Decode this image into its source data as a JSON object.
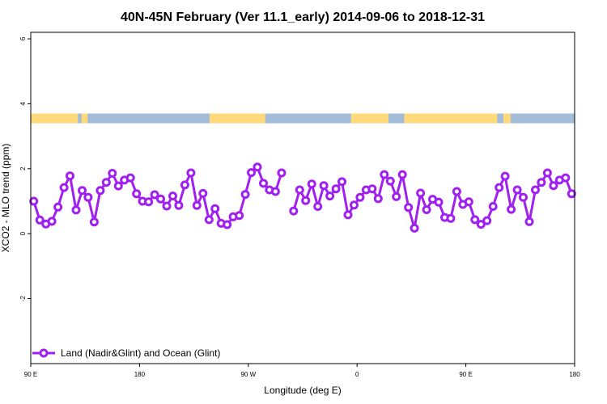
{
  "chart_data": {
    "type": "line",
    "title": "40N-45N February (Ver 11.1_early)   2014-09-06 to 2018-12-31",
    "xlabel": "Longitude (deg E)",
    "ylabel": "XCO2 - MLO trend (ppm)",
    "xlim": [
      90,
      450
    ],
    "ylim": [
      -4,
      6.2
    ],
    "x_ticks": [
      {
        "value": 90,
        "label": "90 E"
      },
      {
        "value": 180,
        "label": "180"
      },
      {
        "value": 270,
        "label": "90 W"
      },
      {
        "value": 360,
        "label": "0"
      },
      {
        "value": 450,
        "label": "90 E"
      }
    ],
    "x_ticks_extra": [
      {
        "value": 540,
        "label": "180"
      }
    ],
    "y_ticks": [
      {
        "value": 6,
        "label": "6"
      },
      {
        "value": 4,
        "label": "4"
      },
      {
        "value": 2,
        "label": "2"
      },
      {
        "value": 0,
        "label": "0"
      },
      {
        "value": -2,
        "label": "-2"
      }
    ],
    "legend": {
      "position": "bottom-left",
      "entries": [
        "Land (Nadir&Glint) and Ocean (Glint)"
      ]
    },
    "colors": {
      "series": "#a020f0",
      "land": "#ffd97a",
      "ocean": "#a3bcd8"
    },
    "land_ocean_strip": {
      "y_range": [
        3.4,
        3.7
      ],
      "land_ranges": [
        [
          90,
          129
        ],
        [
          132,
          137
        ],
        [
          238,
          284
        ],
        [
          355,
          386
        ],
        [
          399,
          476
        ],
        [
          481,
          487
        ]
      ]
    },
    "series": [
      {
        "name": "Land (Nadir&Glint) and Ocean (Glint)",
        "segments": [
          {
            "x": [
              92.5,
              97.5,
              102.5,
              107.5,
              112.5,
              117.5,
              122.5,
              127.5,
              132.5,
              137.5,
              142.5,
              147.5,
              152.5,
              157.5,
              162.5,
              167.5,
              172.5,
              177.5,
              182.5,
              187.5,
              192.5,
              197.5,
              202.5,
              207.5,
              212.5,
              217.5,
              222.5,
              227.5,
              232.5,
              237.5,
              242.5,
              247.5,
              252.5,
              257.5,
              262.5,
              267.5,
              272.5,
              277.5,
              282.5,
              287.5,
              292.5,
              297.5,
              302.5
            ],
            "y": [
              1.0,
              0.42,
              0.3,
              0.38,
              0.82,
              1.42,
              1.78,
              0.73,
              1.33,
              1.12,
              0.36,
              1.33,
              1.58,
              1.86,
              1.47,
              1.65,
              1.72,
              1.23,
              1.0,
              0.98,
              1.2,
              1.07,
              0.85,
              1.16,
              0.87,
              1.5,
              1.87,
              0.87,
              1.24,
              0.43,
              0.77,
              0.32,
              0.28,
              0.52,
              0.56,
              1.21,
              1.88,
              2.05,
              1.55,
              1.35,
              1.3,
              1.87,
              null
            ]
          },
          {
            "x": [
              307.5,
              312.5,
              317.5,
              322.5,
              327.5,
              332.5,
              337.5,
              342.5,
              347.5,
              352.5,
              357.5,
              362.5,
              367.5,
              372.5,
              377.5,
              382.5,
              387.5,
              392.5,
              397.5,
              402.5,
              407.5,
              412.5,
              417.5,
              422.5,
              427.5,
              432.5,
              437.5,
              442.5,
              447.5,
              452.5,
              457.5,
              462.5,
              467.5,
              472.5,
              477.5,
              482.5,
              487.5,
              492.5,
              497.5,
              502.5,
              507.5,
              512.5,
              517.5,
              522.5,
              527.5,
              532.5,
              537.5
            ],
            "y": [
              0.7,
              1.35,
              1.02,
              1.53,
              0.84,
              1.48,
              1.16,
              1.38,
              1.6,
              0.58,
              0.88,
              1.12,
              1.35,
              1.38,
              1.08,
              1.82,
              1.62,
              1.14,
              1.82,
              0.81,
              0.17,
              1.25,
              0.74,
              1.06,
              0.97,
              0.5,
              0.47,
              1.3,
              0.9,
              0.98,
              0.43,
              0.29,
              0.4,
              0.84,
              1.42,
              1.77,
              0.75,
              1.35,
              1.12,
              0.37,
              1.35,
              1.58,
              1.87,
              1.48,
              1.65,
              1.72,
              1.23
            ]
          }
        ]
      }
    ]
  }
}
